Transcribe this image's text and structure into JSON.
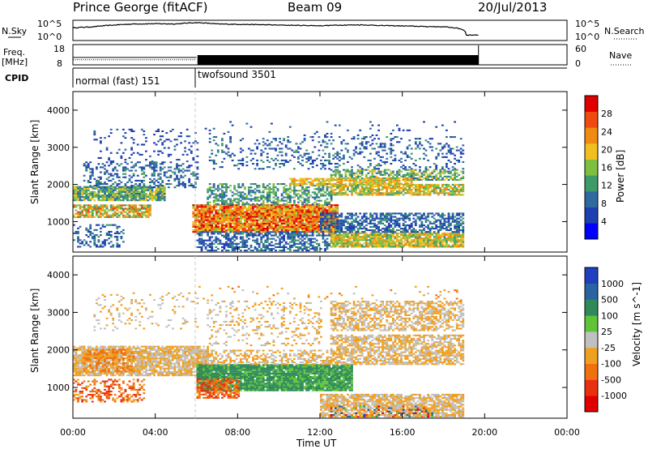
{
  "header": {
    "station": "Prince George (fitACF)",
    "beam": "Beam 09",
    "date": "20/Jul/2013"
  },
  "strip_labels": {
    "nsky": "N.Sky",
    "nsky_tick_hi": "10^5",
    "nsky_tick_lo": "10^0",
    "nsearch": "N.Search",
    "nsearch_tick_hi": "10^5",
    "nsearch_tick_lo": "10^0",
    "freq": "Freq.",
    "freq_unit": "[MHz]",
    "freq_tick_hi": "18",
    "freq_tick_lo": "8",
    "nave": "Nave",
    "nave_tick_hi": "60",
    "nave_tick_lo": "0",
    "cpid": "CPID",
    "cpid_mode_1": "normal (fast) 151",
    "cpid_mode_2": "twofsound 3501"
  },
  "colors": {
    "power_scale": [
      "#0000ff",
      "#1e3fb0",
      "#2e6aa0",
      "#3f9a6a",
      "#7fbf3f",
      "#f0c020",
      "#f08a10",
      "#f04a10",
      "#e00000"
    ],
    "velocity_scale": [
      "#1f3fbf",
      "#2a64a0",
      "#2f8a5a",
      "#5fc43a",
      "#c0c0c0",
      "#f0a020",
      "#f07010",
      "#e83010",
      "#e00000"
    ]
  },
  "chart_data": [
    {
      "type": "line",
      "panel": "N.Sky / N.Search",
      "y_scale": "log",
      "ylim": [
        1,
        100000
      ],
      "x_unit": "hours UT",
      "series": [
        {
          "name": "N.Sky",
          "x": [
            0,
            1,
            2,
            3,
            4,
            5,
            6,
            7,
            8,
            9,
            10,
            11,
            12,
            13,
            14,
            15,
            16,
            17,
            18,
            19.1,
            19.7
          ],
          "values": [
            2000,
            4000,
            12000,
            25000,
            30000,
            25000,
            60000,
            25000,
            20000,
            16000,
            12000,
            10000,
            8000,
            12000,
            14000,
            9000,
            7000,
            5000,
            4000,
            20,
            20
          ]
        },
        {
          "name": "N.Search",
          "x": [],
          "values": []
        }
      ]
    },
    {
      "type": "line",
      "panel": "Freq. / Nave",
      "ylim_freq": [
        8,
        18
      ],
      "ylim_nave": [
        0,
        60
      ],
      "x_unit": "hours UT",
      "series": [
        {
          "name": "Freq.",
          "x": [
            0,
            6
          ],
          "values": [
            10.5,
            10.5
          ]
        },
        {
          "name": "Nave",
          "x": [
            0,
            6,
            19.7
          ],
          "values": [
            22,
            22,
            22
          ]
        }
      ]
    },
    {
      "type": "table",
      "panel": "CPID",
      "rows": [
        {
          "label": "normal (fast) 151",
          "start": 0.0,
          "end": 6.05
        },
        {
          "label": "twofsound 3501",
          "start": 6.05,
          "end": 24.0
        }
      ]
    },
    {
      "type": "heatmap",
      "panel": "Power",
      "title": "Power [dB]",
      "xlabel": "",
      "ylabel": "Slant Range [km]",
      "xlim": [
        0,
        24
      ],
      "ylim": [
        180,
        4500
      ],
      "y_ticks": [
        1000,
        2000,
        3000,
        4000
      ],
      "colorbar": {
        "label": "Power [dB]",
        "ticks": [
          4,
          8,
          12,
          16,
          20,
          24,
          28
        ],
        "range": [
          0,
          32
        ]
      },
      "blobs": [
        {
          "x0": 0.0,
          "x1": 4.5,
          "y0": 1550,
          "y1": 1950,
          "density": 0.9,
          "vmin": 8,
          "vmax": 20
        },
        {
          "x0": 0.0,
          "x1": 3.8,
          "y0": 1100,
          "y1": 1450,
          "density": 0.8,
          "vmin": 12,
          "vmax": 28
        },
        {
          "x0": 0.0,
          "x1": 2.5,
          "y0": 300,
          "y1": 900,
          "density": 0.35,
          "vmin": 4,
          "vmax": 12
        },
        {
          "x0": 0.5,
          "x1": 6.0,
          "y0": 1900,
          "y1": 2600,
          "density": 0.35,
          "vmin": 4,
          "vmax": 12
        },
        {
          "x0": 1.0,
          "x1": 6.0,
          "y0": 2600,
          "y1": 3500,
          "density": 0.12,
          "vmin": 4,
          "vmax": 8
        },
        {
          "x0": 5.8,
          "x1": 12.8,
          "y0": 700,
          "y1": 1450,
          "density": 0.95,
          "vmin": 16,
          "vmax": 32
        },
        {
          "x0": 6.5,
          "x1": 12.5,
          "y0": 1450,
          "y1": 2000,
          "density": 0.55,
          "vmin": 8,
          "vmax": 16
        },
        {
          "x0": 6.0,
          "x1": 12.5,
          "y0": 200,
          "y1": 700,
          "density": 0.6,
          "vmin": 4,
          "vmax": 12
        },
        {
          "x0": 12.5,
          "x1": 19.0,
          "y0": 300,
          "y1": 700,
          "density": 0.9,
          "vmin": 12,
          "vmax": 24
        },
        {
          "x0": 12.0,
          "x1": 19.0,
          "y0": 700,
          "y1": 1200,
          "density": 0.6,
          "vmin": 4,
          "vmax": 12
        },
        {
          "x0": 12.5,
          "x1": 19.0,
          "y0": 1700,
          "y1": 2000,
          "density": 0.8,
          "vmin": 12,
          "vmax": 24
        },
        {
          "x0": 12.5,
          "x1": 19.0,
          "y0": 2100,
          "y1": 2400,
          "density": 0.6,
          "vmin": 8,
          "vmax": 20
        },
        {
          "x0": 10.5,
          "x1": 16.5,
          "y0": 1950,
          "y1": 2150,
          "density": 0.7,
          "vmin": 16,
          "vmax": 24
        },
        {
          "x0": 6.5,
          "x1": 19.0,
          "y0": 2400,
          "y1": 3300,
          "density": 0.2,
          "vmin": 4,
          "vmax": 12
        },
        {
          "x0": 6.0,
          "x1": 19.0,
          "y0": 3300,
          "y1": 3700,
          "density": 0.04,
          "vmin": 4,
          "vmax": 8
        }
      ]
    },
    {
      "type": "heatmap",
      "panel": "Velocity",
      "title": "Velocity [m s^-1]",
      "xlabel": "Time UT",
      "ylabel": "Slant Range [km]",
      "xlim": [
        0,
        24
      ],
      "ylim": [
        180,
        4500
      ],
      "y_ticks": [
        1000,
        2000,
        3000,
        4000
      ],
      "x_ticks": [
        "00:00",
        "04:00",
        "08:00",
        "12:00",
        "16:00",
        "20:00",
        "00:00"
      ],
      "colorbar": {
        "label": "Velocity [m s^-1]",
        "ticks": [
          "1000",
          "500",
          "100",
          "25",
          "-25",
          "-100",
          "-500",
          "-1000"
        ],
        "range": [
          0,
          8
        ]
      },
      "blobs": [
        {
          "x0": 0.0,
          "x1": 6.5,
          "y0": 1300,
          "y1": 2100,
          "density": 0.85,
          "vmin": 4,
          "vmax": 5
        },
        {
          "x0": 0.5,
          "x1": 3.0,
          "y0": 1400,
          "y1": 2000,
          "density": 0.5,
          "vmin": 5,
          "vmax": 6
        },
        {
          "x0": 0.0,
          "x1": 3.5,
          "y0": 600,
          "y1": 1200,
          "density": 0.4,
          "vmin": 5,
          "vmax": 7
        },
        {
          "x0": 1.0,
          "x1": 6.0,
          "y0": 2500,
          "y1": 3500,
          "density": 0.12,
          "vmin": 4,
          "vmax": 5
        },
        {
          "x0": 6.0,
          "x1": 13.5,
          "y0": 900,
          "y1": 1600,
          "density": 0.95,
          "vmin": 2,
          "vmax": 3
        },
        {
          "x0": 6.0,
          "x1": 8.0,
          "y0": 700,
          "y1": 1200,
          "density": 0.7,
          "vmin": 5,
          "vmax": 7
        },
        {
          "x0": 6.0,
          "x1": 12.5,
          "y0": 1600,
          "y1": 2000,
          "density": 0.5,
          "vmin": 4,
          "vmax": 5
        },
        {
          "x0": 12.0,
          "x1": 19.0,
          "y0": 200,
          "y1": 800,
          "density": 0.8,
          "vmin": 4,
          "vmax": 5
        },
        {
          "x0": 12.5,
          "x1": 17.5,
          "y0": 200,
          "y1": 500,
          "density": 0.25,
          "vmin": 0,
          "vmax": 8
        },
        {
          "x0": 12.5,
          "x1": 19.0,
          "y0": 1600,
          "y1": 2400,
          "density": 0.7,
          "vmin": 4,
          "vmax": 5
        },
        {
          "x0": 12.5,
          "x1": 19.0,
          "y0": 2500,
          "y1": 3300,
          "density": 0.6,
          "vmin": 4,
          "vmax": 5
        },
        {
          "x0": 6.5,
          "x1": 12.0,
          "y0": 2100,
          "y1": 3300,
          "density": 0.2,
          "vmin": 4,
          "vmax": 5
        },
        {
          "x0": 6.0,
          "x1": 19.0,
          "y0": 3300,
          "y1": 3700,
          "density": 0.04,
          "vmin": 4,
          "vmax": 6
        }
      ]
    }
  ]
}
